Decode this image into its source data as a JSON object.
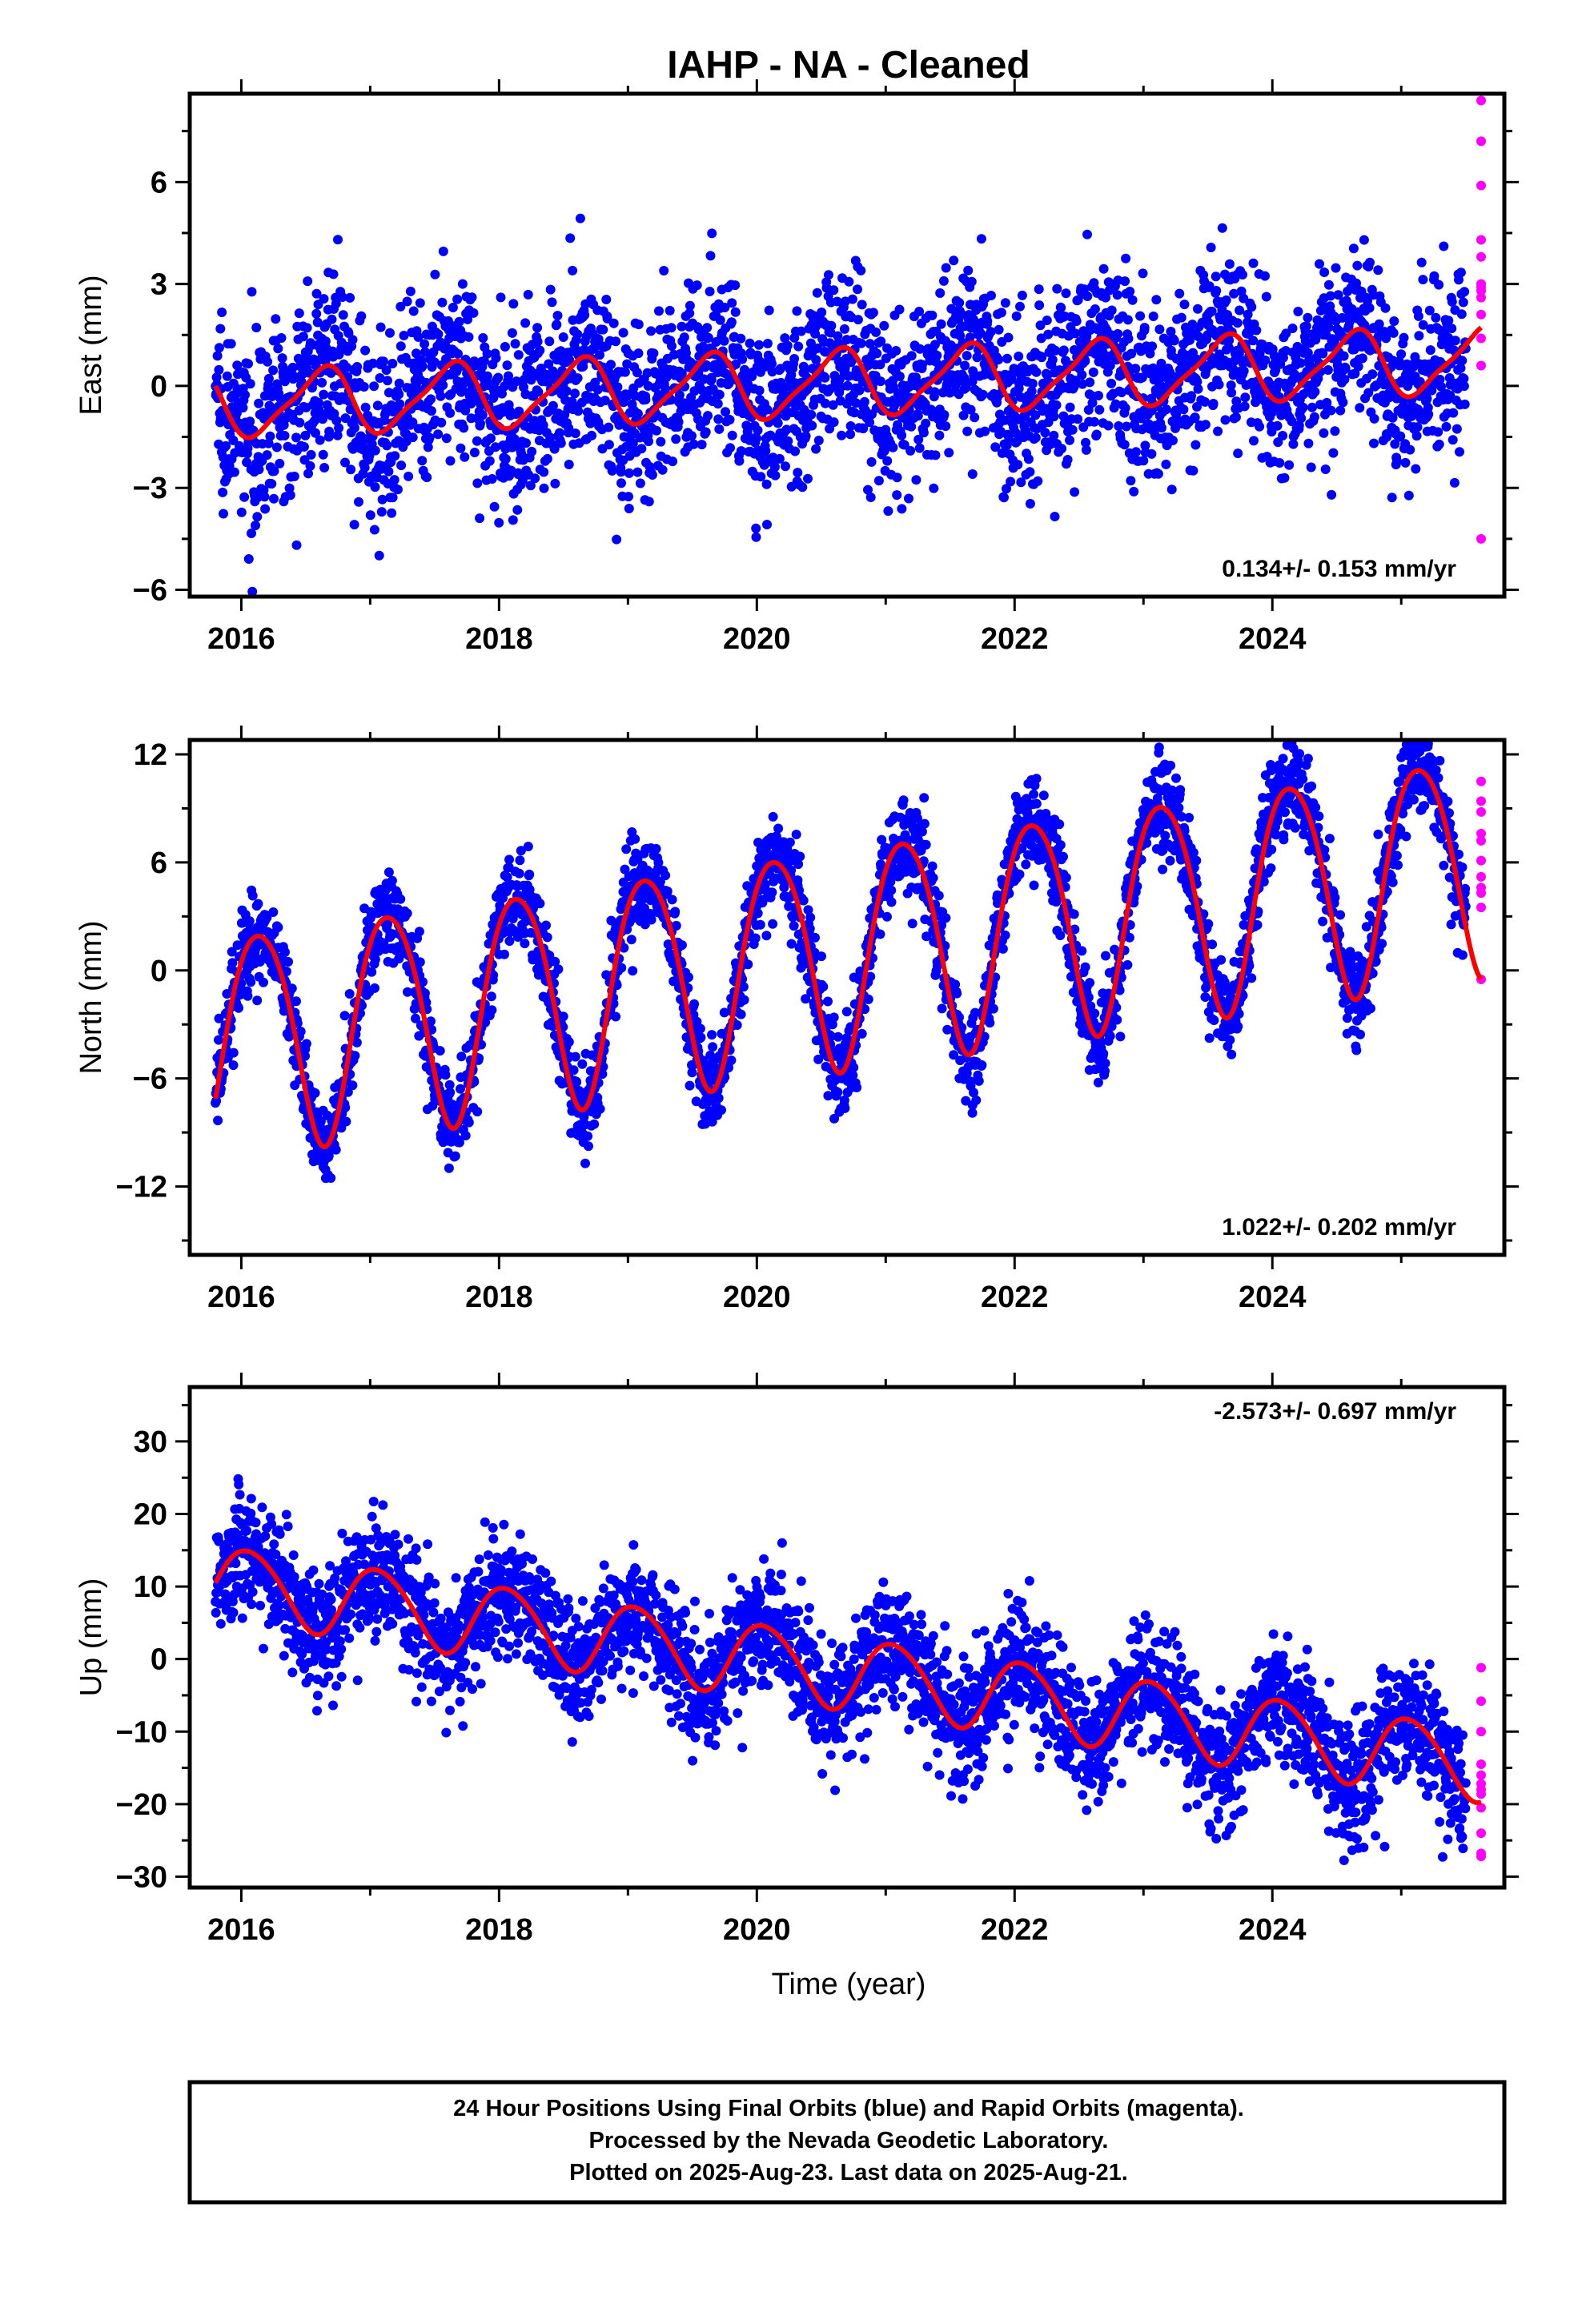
{
  "title": "IAHP  - NA - Cleaned",
  "x_axis": {
    "label": "Time (year)",
    "range": [
      2015.6,
      2025.8
    ],
    "major_ticks": [
      2016,
      2018,
      2020,
      2022,
      2024
    ],
    "tick_labels": [
      "2016",
      "2018",
      "2020",
      "2022",
      "2024"
    ]
  },
  "footer": {
    "line1": "24 Hour Positions Using Final Orbits (blue) and Rapid Orbits (magenta).",
    "line2": "Processed by the Nevada Geodetic Laboratory.",
    "line3": "Plotted on 2025-Aug-23. Last data on 2025-Aug-21."
  },
  "colors": {
    "final_orbits": "#0000ff",
    "rapid_orbits": "#ff00ff",
    "model_fit": "#ff0000",
    "frame": "#000000"
  },
  "chart_data": [
    {
      "type": "scatter",
      "ylabel": "East (mm)",
      "ylim": [
        -6.2,
        8.6
      ],
      "yticks": [
        -6,
        -3,
        0,
        3,
        6
      ],
      "ytick_labels": [
        "−6",
        "−3",
        "0",
        "3",
        "6"
      ],
      "rate_label": "0.134+/- 0.153 mm/yr",
      "rate_position": "bottom-right",
      "x_start": 2015.8,
      "x_end": 2025.5,
      "fit": {
        "name": "model fit",
        "start": 2015.8,
        "end": 2025.62,
        "ref_epoch": 2020.7,
        "offset": 0.1,
        "rate": 0.134,
        "annual_sin": -0.45,
        "annual_cos": 0.82,
        "semiannual_sin": 0.1,
        "semiannual_cos": 0.2
      },
      "series": [
        {
          "name": "Final Orbits",
          "color": "#0000ff",
          "scatter": 1.3,
          "count": 3300
        },
        {
          "name": "Rapid Orbits",
          "color": "#ff00ff",
          "points": [
            [
              2025.62,
              8.4
            ],
            [
              2025.62,
              7.2
            ],
            [
              2025.62,
              5.9
            ],
            [
              2025.62,
              4.3
            ],
            [
              2025.62,
              3.8
            ],
            [
              2025.62,
              3.0
            ],
            [
              2025.62,
              2.9
            ],
            [
              2025.62,
              2.8
            ],
            [
              2025.62,
              2.6
            ],
            [
              2025.62,
              2.1
            ],
            [
              2025.62,
              1.4
            ],
            [
              2025.62,
              0.6
            ],
            [
              2025.62,
              -4.5
            ]
          ]
        }
      ]
    },
    {
      "type": "scatter",
      "ylabel": "North (mm)",
      "ylim": [
        -15.8,
        12.8
      ],
      "yticks": [
        -12,
        -6,
        0,
        6,
        12
      ],
      "ytick_labels": [
        "−12",
        "−6",
        "0",
        "6",
        "12"
      ],
      "rate_label": "1.022+/- 0.202 mm/yr",
      "rate_position": "bottom-right",
      "x_start": 2015.8,
      "x_end": 2025.5,
      "fit": {
        "name": "model fit",
        "start": 2015.8,
        "end": 2025.62,
        "ref_epoch": 2020.7,
        "offset": 1.1,
        "rate": 1.022,
        "annual_sin": 2.2,
        "annual_cos": -5.7,
        "semiannual_sin": 0.3,
        "semiannual_cos": -0.6
      },
      "series": [
        {
          "name": "Final Orbits",
          "color": "#0000ff",
          "scatter": 1.3,
          "count": 3300
        },
        {
          "name": "Rapid Orbits",
          "color": "#ff00ff",
          "points": [
            [
              2025.62,
              10.5
            ],
            [
              2025.62,
              9.4
            ],
            [
              2025.62,
              8.8
            ],
            [
              2025.62,
              7.6
            ],
            [
              2025.62,
              7.2
            ],
            [
              2025.62,
              6.1
            ],
            [
              2025.62,
              5.2
            ],
            [
              2025.62,
              4.6
            ],
            [
              2025.62,
              4.3
            ],
            [
              2025.62,
              3.5
            ],
            [
              2025.62,
              -0.5
            ]
          ]
        }
      ]
    },
    {
      "type": "scatter",
      "ylabel": "Up (mm)",
      "ylim": [
        -31.5,
        37.5
      ],
      "yticks": [
        -30,
        -20,
        -10,
        0,
        10,
        20,
        30
      ],
      "ytick_labels": [
        "−30",
        "−20",
        "−10",
        "0",
        "10",
        "20",
        "30"
      ],
      "rate_label": "-2.573+/- 0.697 mm/yr",
      "rate_position": "top-right",
      "x_start": 2015.8,
      "x_end": 2025.5,
      "fit": {
        "name": "model fit",
        "start": 2015.8,
        "end": 2025.62,
        "ref_epoch": 2020.7,
        "offset": -1.8,
        "rate": -2.573,
        "annual_sin": 3.7,
        "annual_cos": -3.4,
        "semiannual_sin": 0.4,
        "semiannual_cos": -0.3
      },
      "series": [
        {
          "name": "Final Orbits",
          "color": "#0000ff",
          "scatter": 4.2,
          "count": 3300
        },
        {
          "name": "Rapid Orbits",
          "color": "#ff00ff",
          "points": [
            [
              2025.62,
              -1.2
            ],
            [
              2025.62,
              -5.8
            ],
            [
              2025.62,
              -10.0
            ],
            [
              2025.62,
              -14.5
            ],
            [
              2025.62,
              -16.0
            ],
            [
              2025.62,
              -17.2
            ],
            [
              2025.62,
              -18.0
            ],
            [
              2025.62,
              -18.6
            ],
            [
              2025.62,
              -20.5
            ],
            [
              2025.62,
              -24.0
            ],
            [
              2025.62,
              -26.8
            ],
            [
              2025.62,
              -27.2
            ]
          ]
        }
      ]
    }
  ]
}
